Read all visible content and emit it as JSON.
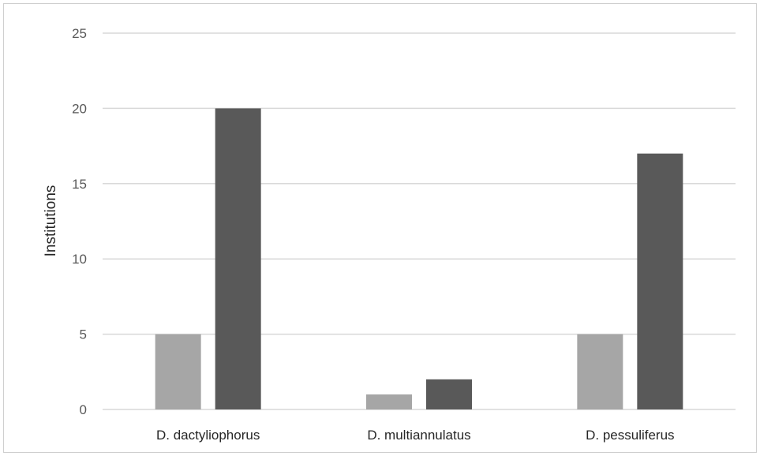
{
  "chart_data": {
    "type": "bar",
    "title": "",
    "xlabel": "",
    "ylabel": "Institutions",
    "categories": [
      "D. dactyliophorus",
      "D. multiannulatus",
      "D. pessuliferus"
    ],
    "series": [
      {
        "values": [
          5,
          1,
          5
        ],
        "color": "#a6a6a6"
      },
      {
        "values": [
          20,
          2,
          17
        ],
        "color": "#595959"
      }
    ],
    "ylim": [
      0,
      25
    ],
    "yticks": [
      0,
      5,
      10,
      15,
      20,
      25
    ],
    "grid": true,
    "legend": "none",
    "gridline_color": "#d9d9d9"
  }
}
